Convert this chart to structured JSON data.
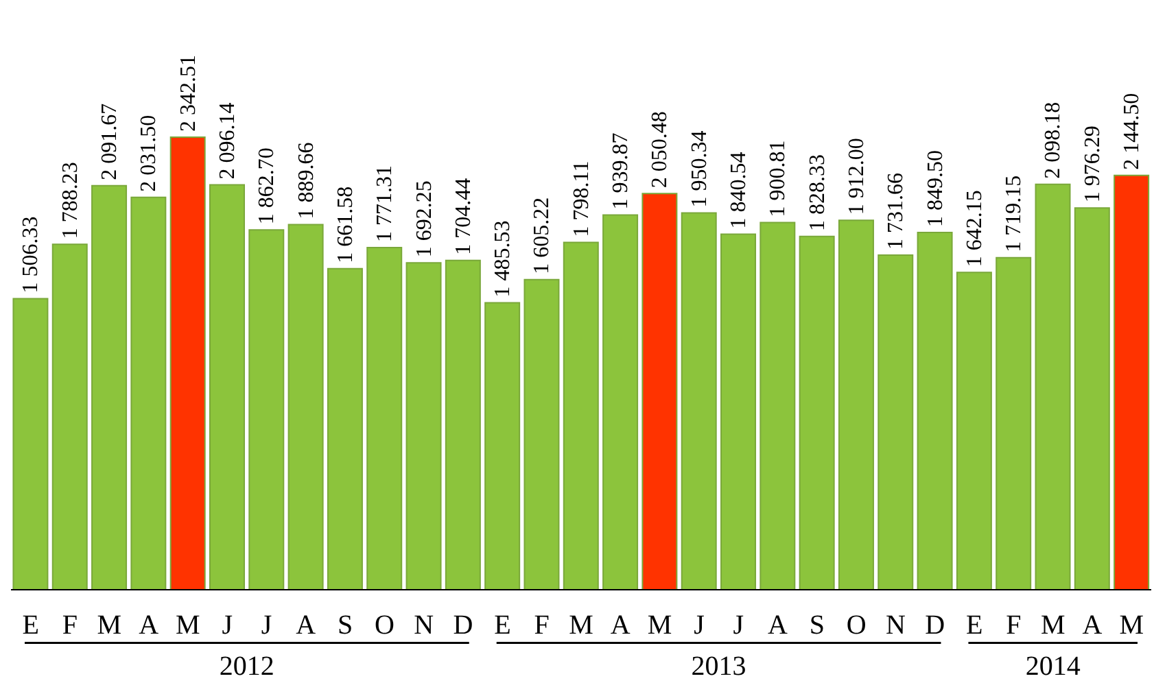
{
  "chart_data": {
    "type": "bar",
    "categories": [
      "E",
      "F",
      "M",
      "A",
      "M",
      "J",
      "J",
      "A",
      "S",
      "O",
      "N",
      "D",
      "E",
      "F",
      "M",
      "A",
      "M",
      "J",
      "J",
      "A",
      "S",
      "O",
      "N",
      "D",
      "E",
      "F",
      "M",
      "A",
      "M"
    ],
    "values": [
      1506.33,
      1788.23,
      2091.67,
      2031.5,
      2342.51,
      2096.14,
      1862.7,
      1889.66,
      1661.58,
      1771.31,
      1692.25,
      1704.44,
      1485.53,
      1605.22,
      1798.11,
      1939.87,
      2050.48,
      1950.34,
      1840.54,
      1900.81,
      1828.33,
      1912.0,
      1731.66,
      1849.5,
      1642.15,
      1719.15,
      2098.18,
      1976.29,
      2144.5
    ],
    "value_labels": [
      "1 506.33",
      "1 788.23",
      "2 091.67",
      "2 031.50",
      "2 342.51",
      "2 096.14",
      "1 862.70",
      "1 889.66",
      "1 661.58",
      "1 771.31",
      "1 692.25",
      "1 704.44",
      "1 485.53",
      "1 605.22",
      "1 798.11",
      "1 939.87",
      "2 050.48",
      "1 950.34",
      "1 840.54",
      "1 900.81",
      "1 828.33",
      "1 912.00",
      "1 731.66",
      "1 849.50",
      "1 642.15",
      "1 719.15",
      "2 098.18",
      "1 976.29",
      "2 144.50"
    ],
    "colors": [
      "#8cc43c",
      "#8cc43c",
      "#8cc43c",
      "#8cc43c",
      "#ff3300",
      "#8cc43c",
      "#8cc43c",
      "#8cc43c",
      "#8cc43c",
      "#8cc43c",
      "#8cc43c",
      "#8cc43c",
      "#8cc43c",
      "#8cc43c",
      "#8cc43c",
      "#8cc43c",
      "#ff3300",
      "#8cc43c",
      "#8cc43c",
      "#8cc43c",
      "#8cc43c",
      "#8cc43c",
      "#8cc43c",
      "#8cc43c",
      "#8cc43c",
      "#8cc43c",
      "#8cc43c",
      "#8cc43c",
      "#ff3300"
    ],
    "annotations": [
      "2012",
      "2013",
      "2014"
    ],
    "grid": false,
    "legend": false
  }
}
